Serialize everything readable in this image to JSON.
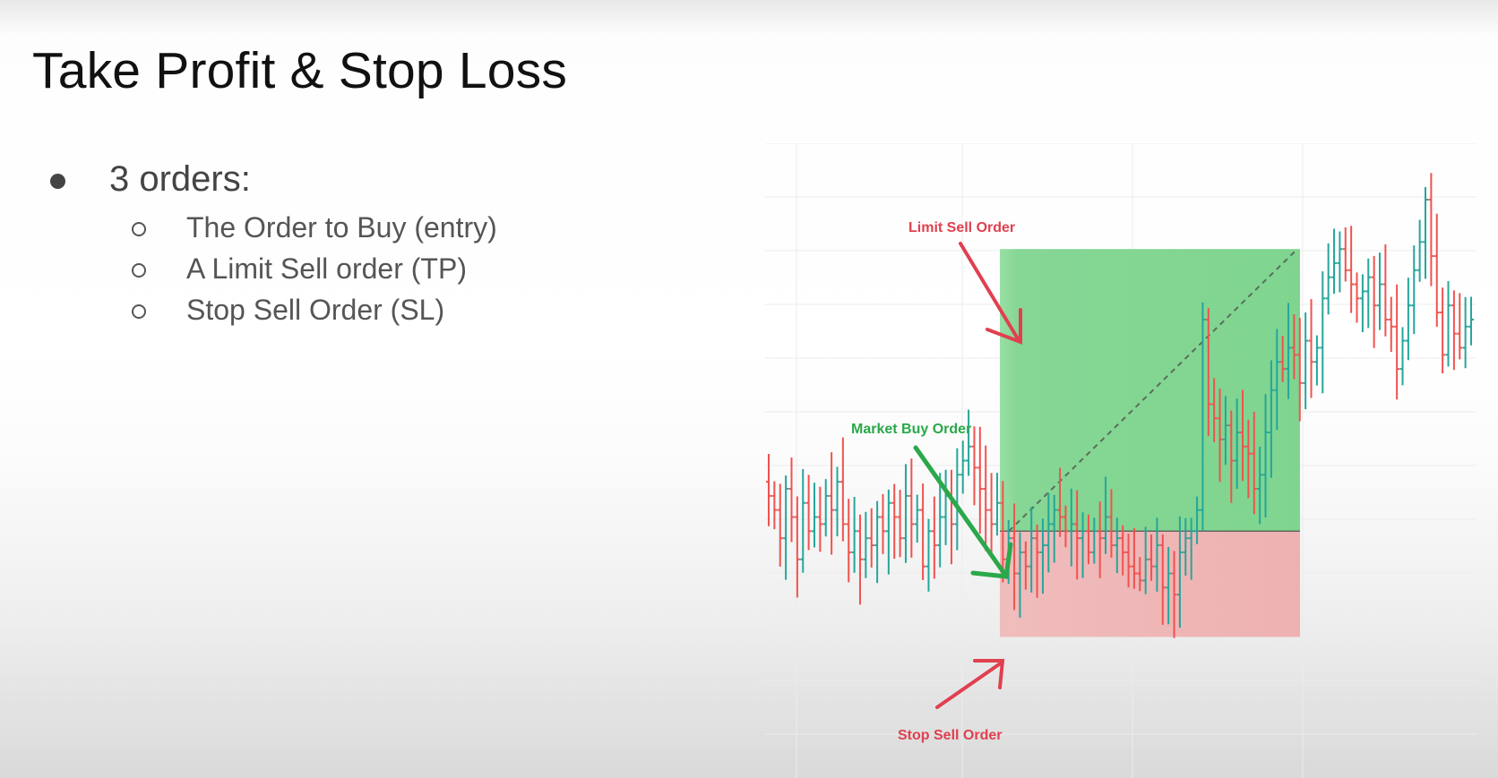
{
  "slide": {
    "title": "Take Profit & Stop Loss",
    "bullet": "3 orders:",
    "sub_bullets": [
      "The Order to Buy (entry)",
      "A Limit Sell order (TP)",
      "Stop Sell Order (SL)"
    ]
  },
  "chart_data": {
    "type": "ohlc",
    "annotations": {
      "limit_sell": "Limit Sell Order",
      "market_buy": "Market Buy Order",
      "stop_sell": "Stop Sell Order"
    },
    "levels": {
      "take_profit": 100,
      "entry": 20,
      "stop_loss": -10
    },
    "colors": {
      "up": "#26a69a",
      "down": "#ef5350",
      "profit_zone": "#7fd58f",
      "loss_zone": "#eeb1b1",
      "limit_label": "#e0404f",
      "buy_label": "#2aa84a",
      "stop_label": "#e0404f"
    },
    "grid": true,
    "price_path": [
      30,
      26,
      18,
      32,
      24,
      12,
      28,
      20,
      24,
      22,
      30,
      26,
      34,
      22,
      14,
      20,
      12,
      18,
      16,
      24,
      20,
      28,
      24,
      18,
      30,
      22,
      26,
      10,
      20,
      16,
      24,
      30,
      22,
      36,
      40,
      44,
      38,
      32,
      26,
      22,
      28,
      12,
      18,
      8,
      14,
      10,
      18,
      14,
      16,
      22,
      26,
      24,
      20,
      22,
      18,
      20,
      14,
      20,
      18,
      24,
      16,
      18,
      14,
      10,
      8,
      6,
      12,
      10,
      16,
      4,
      8,
      2,
      14,
      18,
      20,
      26,
      80,
      56,
      52,
      46,
      50,
      40,
      48,
      44,
      42,
      32,
      36,
      48,
      60,
      68,
      66,
      72,
      70,
      62,
      74,
      68,
      72,
      86,
      92,
      96,
      100,
      94,
      90,
      86,
      88,
      92,
      84,
      90,
      80,
      78,
      66,
      74,
      84,
      94,
      102,
      114,
      98,
      82,
      70,
      84,
      76,
      72,
      78,
      80
    ]
  }
}
